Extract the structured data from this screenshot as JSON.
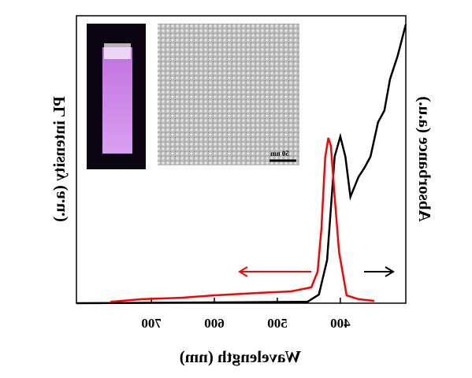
{
  "chart_data": {
    "type": "line",
    "x_label": "Wavelength (nm)",
    "y_label": "Absorbance (a.u.)",
    "y2_label": "PL intensity (a.u.)",
    "xlim": [
      296,
      819
    ],
    "xticks": [
      400,
      500,
      600,
      700
    ],
    "ylim": [
      0,
      100
    ],
    "y2lim": [
      0,
      100
    ],
    "inset_scale_label": "50 nm",
    "series": [
      {
        "color": "#000000",
        "x": [
          296,
          309,
          321,
          330,
          340,
          352,
          362,
          371,
          384,
          392,
          400,
          409,
          421,
          434,
          452,
          565,
          819
        ],
        "values": [
          97,
          86,
          78,
          67,
          63,
          51,
          47,
          44,
          37,
          51,
          58,
          51,
          15,
          3,
          0.5,
          0.3,
          0
        ]
      },
      {
        "color": "#ff0000",
        "axis": "y2",
        "x": [
          346,
          371,
          390,
          402,
          409,
          415,
          419,
          424,
          430,
          436,
          446,
          478,
          528,
          602,
          652,
          715,
          765
        ],
        "values": [
          0.8,
          1.4,
          2.7,
          17.8,
          37,
          54.8,
          57.5,
          50.7,
          26,
          11,
          5.5,
          4.1,
          3.6,
          2.7,
          1.9,
          1.4,
          0.5
        ]
      }
    ]
  }
}
